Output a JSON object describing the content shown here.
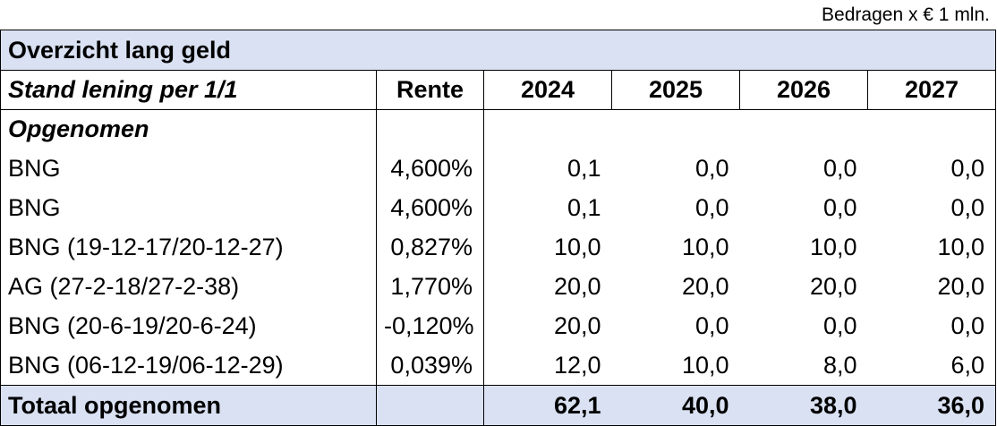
{
  "note": "Bedragen x € 1 mln.",
  "title": "Overzicht lang geld",
  "header": {
    "name": "Stand lening per 1/1",
    "rate": "Rente",
    "years": [
      "2024",
      "2025",
      "2026",
      "2027"
    ]
  },
  "section_label": "Opgenomen",
  "rows": [
    {
      "name": "BNG",
      "rate": "4,600%",
      "values": [
        "0,1",
        "0,0",
        "0,0",
        "0,0"
      ]
    },
    {
      "name": "BNG",
      "rate": "4,600%",
      "values": [
        "0,1",
        "0,0",
        "0,0",
        "0,0"
      ]
    },
    {
      "name": "BNG (19-12-17/20-12-27)",
      "rate": "0,827%",
      "values": [
        "10,0",
        "10,0",
        "10,0",
        "10,0"
      ]
    },
    {
      "name": "AG (27-2-18/27-2-38)",
      "rate": "1,770%",
      "values": [
        "20,0",
        "20,0",
        "20,0",
        "20,0"
      ]
    },
    {
      "name": "BNG (20-6-19/20-6-24)",
      "rate": "-0,120%",
      "values": [
        "20,0",
        "0,0",
        "0,0",
        "0,0"
      ]
    },
    {
      "name": "BNG (06-12-19/06-12-29)",
      "rate": "0,039%",
      "values": [
        "12,0",
        "10,0",
        "8,0",
        "6,0"
      ]
    }
  ],
  "total": {
    "label": "Totaal opgenomen",
    "values": [
      "62,1",
      "40,0",
      "38,0",
      "36,0"
    ]
  },
  "colors": {
    "header_fill": "#d9e1f2",
    "border": "#000000"
  }
}
